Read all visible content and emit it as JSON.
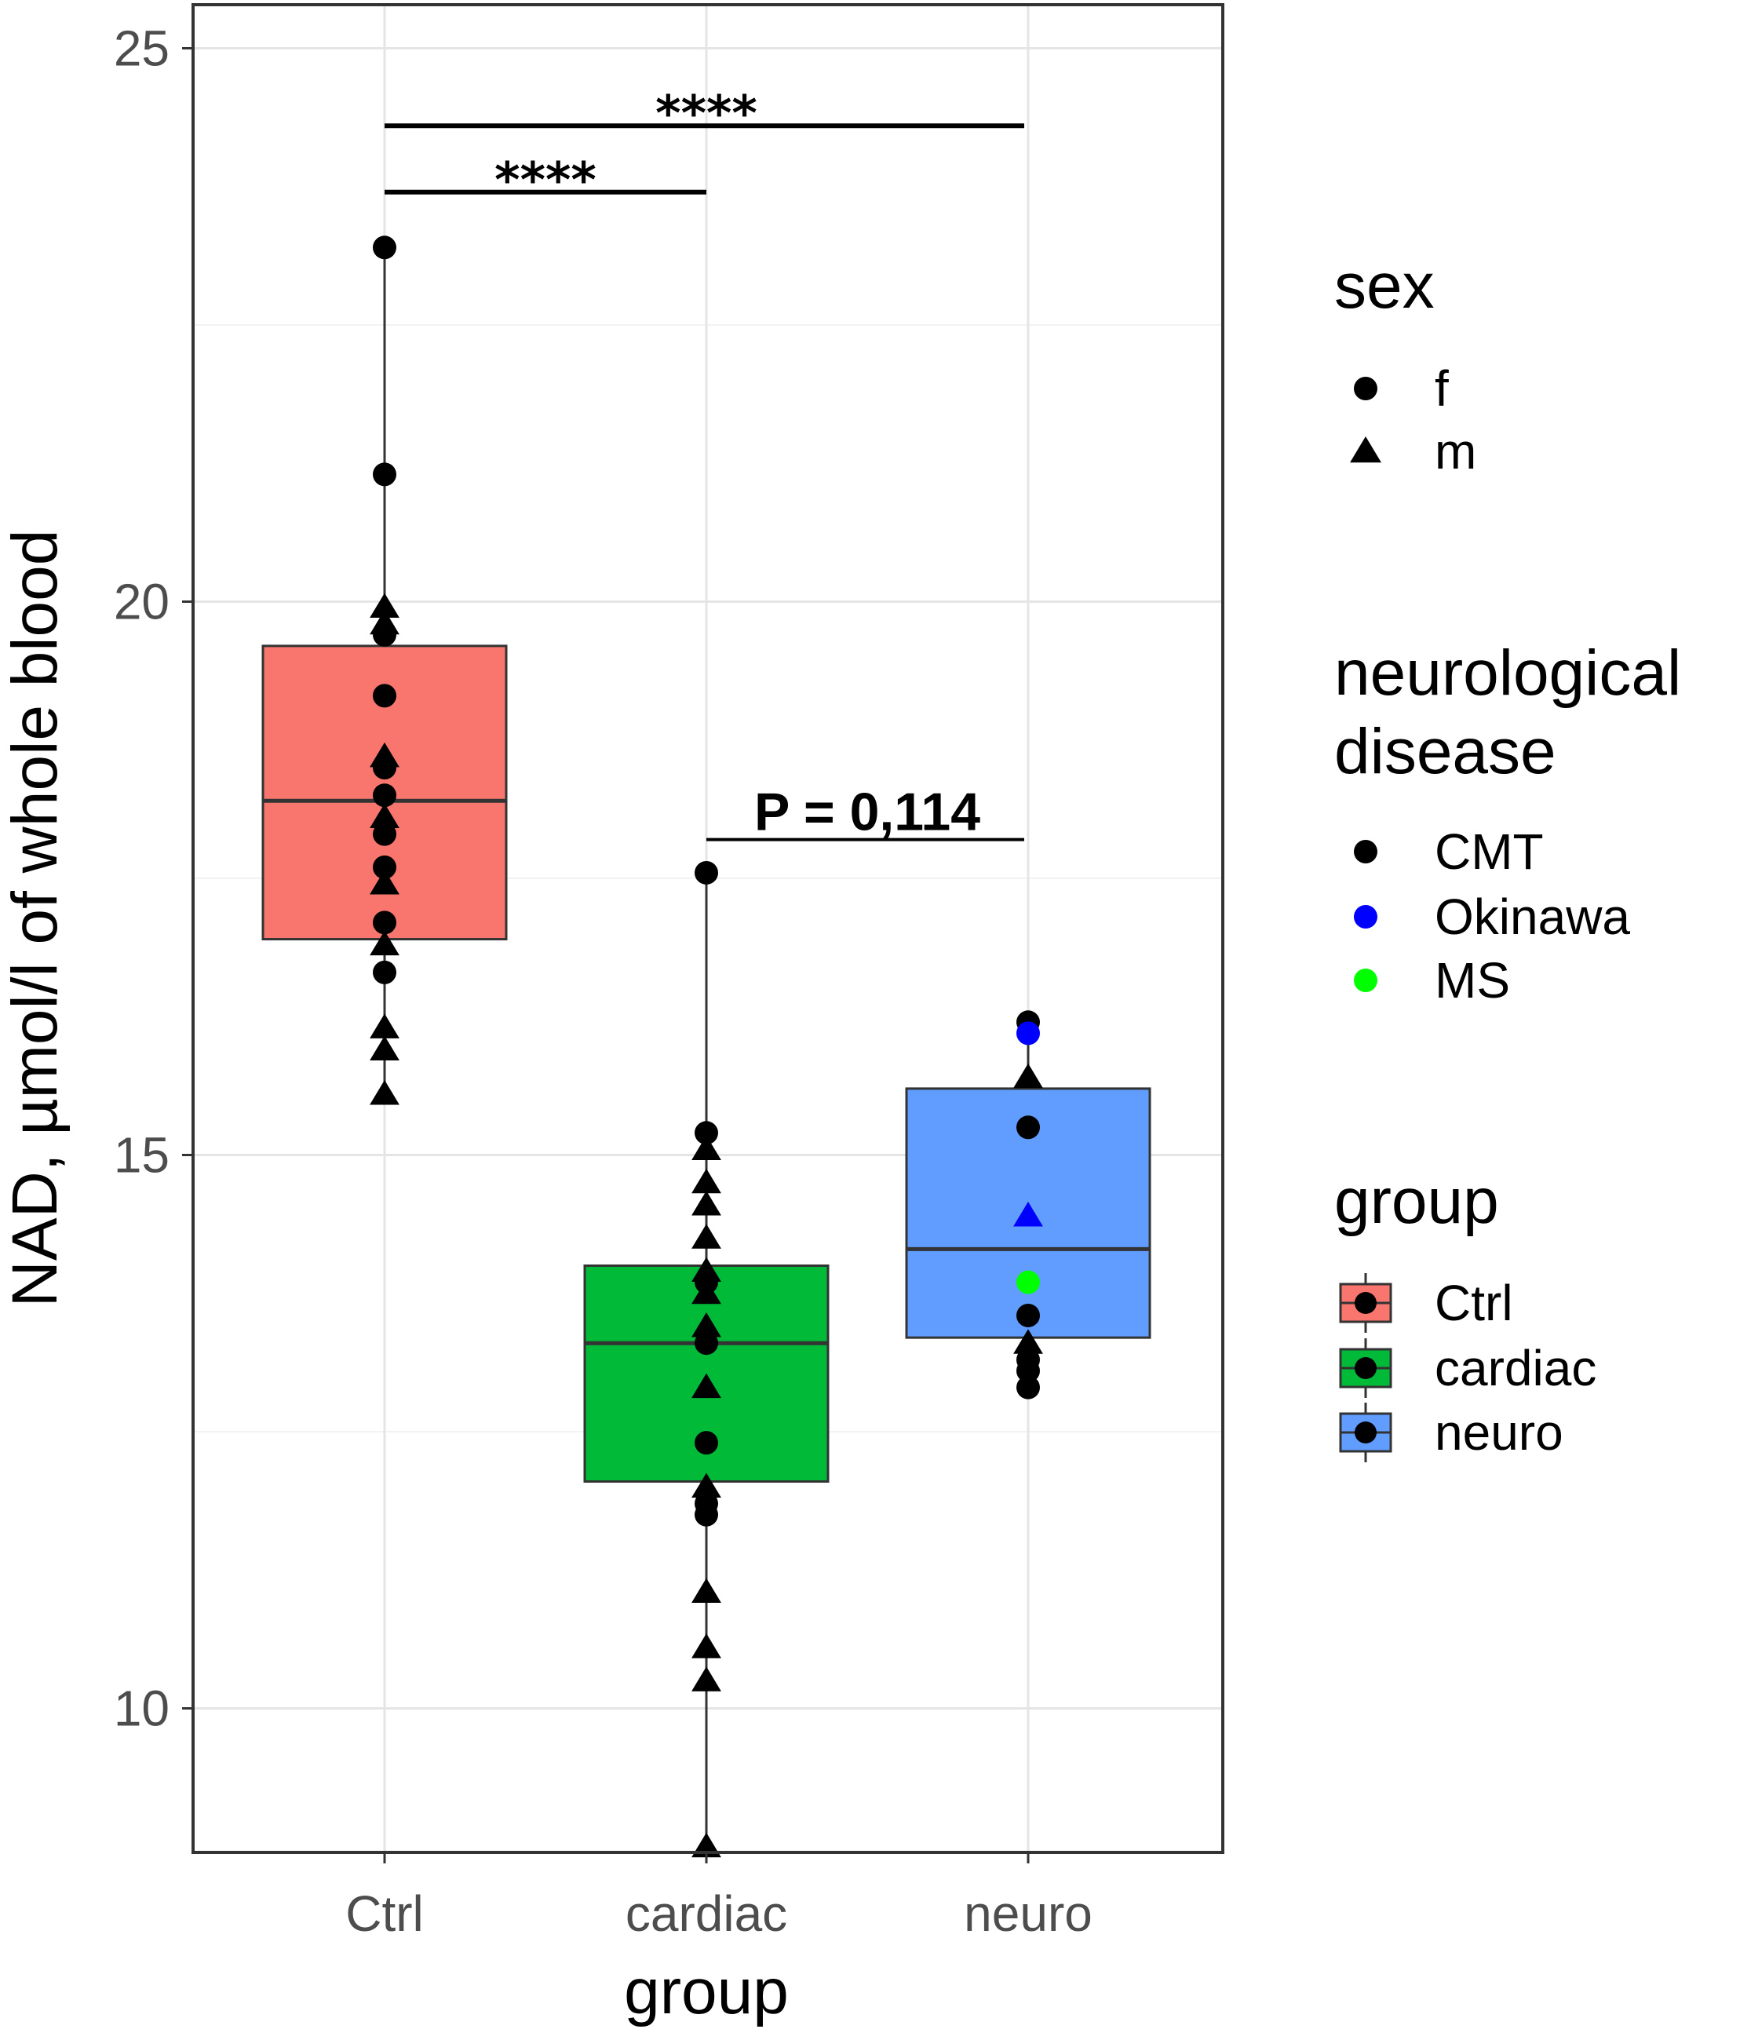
{
  "chart_data": {
    "type": "box",
    "xlabel": "group",
    "ylabel": "NAD, µmol/l of whole blood",
    "ylim": [
      8.7,
      25.4
    ],
    "yticks": [
      10,
      15,
      20,
      25
    ],
    "ytick_labels": [
      "10",
      "15",
      "20",
      "25"
    ],
    "categories": [
      "Ctrl",
      "cardiac",
      "neuro"
    ],
    "grid": true,
    "colors": {
      "Ctrl": "#f8766d",
      "cardiac": "#00ba38",
      "neuro": "#619cff",
      "CMT": "#000000",
      "Okinawa": "#0000ff",
      "MS": "#00ff00"
    },
    "boxes": [
      {
        "group": "Ctrl",
        "q1": 16.95,
        "median": 18.2,
        "q3": 19.6,
        "whisker_low": 15.5,
        "whisker_high": 23.2
      },
      {
        "group": "cardiac",
        "q1": 12.05,
        "median": 13.3,
        "q3": 14.0,
        "whisker_low": 8.75,
        "whisker_high": 17.55
      },
      {
        "group": "neuro",
        "q1": 13.35,
        "median": 14.15,
        "q3": 15.6,
        "whisker_low": 12.9,
        "whisker_high": 16.2
      }
    ],
    "points": [
      {
        "group": "Ctrl",
        "y": 23.2,
        "sex": "f",
        "disease": "CMT"
      },
      {
        "group": "Ctrl",
        "y": 21.15,
        "sex": "f",
        "disease": "CMT"
      },
      {
        "group": "Ctrl",
        "y": 19.95,
        "sex": "m",
        "disease": "CMT"
      },
      {
        "group": "Ctrl",
        "y": 19.8,
        "sex": "m",
        "disease": "CMT"
      },
      {
        "group": "Ctrl",
        "y": 19.7,
        "sex": "f",
        "disease": "CMT"
      },
      {
        "group": "Ctrl",
        "y": 19.15,
        "sex": "f",
        "disease": "CMT"
      },
      {
        "group": "Ctrl",
        "y": 18.6,
        "sex": "m",
        "disease": "CMT"
      },
      {
        "group": "Ctrl",
        "y": 18.5,
        "sex": "f",
        "disease": "CMT"
      },
      {
        "group": "Ctrl",
        "y": 18.25,
        "sex": "f",
        "disease": "CMT"
      },
      {
        "group": "Ctrl",
        "y": 18.05,
        "sex": "m",
        "disease": "CMT"
      },
      {
        "group": "Ctrl",
        "y": 17.9,
        "sex": "f",
        "disease": "CMT"
      },
      {
        "group": "Ctrl",
        "y": 17.6,
        "sex": "f",
        "disease": "CMT"
      },
      {
        "group": "Ctrl",
        "y": 17.45,
        "sex": "m",
        "disease": "CMT"
      },
      {
        "group": "Ctrl",
        "y": 17.1,
        "sex": "f",
        "disease": "CMT"
      },
      {
        "group": "Ctrl",
        "y": 16.9,
        "sex": "m",
        "disease": "CMT"
      },
      {
        "group": "Ctrl",
        "y": 16.65,
        "sex": "f",
        "disease": "CMT"
      },
      {
        "group": "Ctrl",
        "y": 16.15,
        "sex": "m",
        "disease": "CMT"
      },
      {
        "group": "Ctrl",
        "y": 15.95,
        "sex": "m",
        "disease": "CMT"
      },
      {
        "group": "Ctrl",
        "y": 15.55,
        "sex": "m",
        "disease": "CMT"
      },
      {
        "group": "cardiac",
        "y": 17.55,
        "sex": "f",
        "disease": "CMT"
      },
      {
        "group": "cardiac",
        "y": 15.2,
        "sex": "f",
        "disease": "CMT"
      },
      {
        "group": "cardiac",
        "y": 15.05,
        "sex": "m",
        "disease": "CMT"
      },
      {
        "group": "cardiac",
        "y": 14.75,
        "sex": "m",
        "disease": "CMT"
      },
      {
        "group": "cardiac",
        "y": 14.55,
        "sex": "m",
        "disease": "CMT"
      },
      {
        "group": "cardiac",
        "y": 14.25,
        "sex": "m",
        "disease": "CMT"
      },
      {
        "group": "cardiac",
        "y": 13.95,
        "sex": "m",
        "disease": "CMT"
      },
      {
        "group": "cardiac",
        "y": 13.85,
        "sex": "f",
        "disease": "CMT"
      },
      {
        "group": "cardiac",
        "y": 13.75,
        "sex": "m",
        "disease": "CMT"
      },
      {
        "group": "cardiac",
        "y": 13.45,
        "sex": "m",
        "disease": "CMT"
      },
      {
        "group": "cardiac",
        "y": 13.3,
        "sex": "f",
        "disease": "CMT"
      },
      {
        "group": "cardiac",
        "y": 12.9,
        "sex": "m",
        "disease": "CMT"
      },
      {
        "group": "cardiac",
        "y": 12.4,
        "sex": "f",
        "disease": "CMT"
      },
      {
        "group": "cardiac",
        "y": 12.0,
        "sex": "m",
        "disease": "CMT"
      },
      {
        "group": "cardiac",
        "y": 11.85,
        "sex": "f",
        "disease": "CMT"
      },
      {
        "group": "cardiac",
        "y": 11.75,
        "sex": "f",
        "disease": "CMT"
      },
      {
        "group": "cardiac",
        "y": 11.05,
        "sex": "m",
        "disease": "CMT"
      },
      {
        "group": "cardiac",
        "y": 10.55,
        "sex": "m",
        "disease": "CMT"
      },
      {
        "group": "cardiac",
        "y": 10.25,
        "sex": "m",
        "disease": "CMT"
      },
      {
        "group": "cardiac",
        "y": 8.75,
        "sex": "m",
        "disease": "CMT"
      },
      {
        "group": "neuro",
        "y": 16.2,
        "sex": "f",
        "disease": "CMT"
      },
      {
        "group": "neuro",
        "y": 16.1,
        "sex": "f",
        "disease": "Okinawa"
      },
      {
        "group": "neuro",
        "y": 15.7,
        "sex": "m",
        "disease": "CMT"
      },
      {
        "group": "neuro",
        "y": 15.25,
        "sex": "f",
        "disease": "CMT"
      },
      {
        "group": "neuro",
        "y": 14.45,
        "sex": "m",
        "disease": "Okinawa"
      },
      {
        "group": "neuro",
        "y": 13.85,
        "sex": "f",
        "disease": "MS"
      },
      {
        "group": "neuro",
        "y": 13.55,
        "sex": "f",
        "disease": "CMT"
      },
      {
        "group": "neuro",
        "y": 13.3,
        "sex": "m",
        "disease": "CMT"
      },
      {
        "group": "neuro",
        "y": 13.15,
        "sex": "f",
        "disease": "CMT"
      },
      {
        "group": "neuro",
        "y": 13.05,
        "sex": "f",
        "disease": "CMT"
      },
      {
        "group": "neuro",
        "y": 12.9,
        "sex": "f",
        "disease": "CMT"
      }
    ],
    "annotations": [
      {
        "from": "Ctrl",
        "to": "neuro",
        "label": "****",
        "y": 24.3
      },
      {
        "from": "Ctrl",
        "to": "cardiac",
        "label": "****",
        "y": 23.7
      },
      {
        "from": "cardiac",
        "to": "neuro",
        "label": "P = 0,114",
        "y": 17.85
      }
    ],
    "legends": [
      {
        "title": "sex",
        "entries": [
          {
            "label": "f",
            "shape": "circle"
          },
          {
            "label": "m",
            "shape": "triangle"
          }
        ]
      },
      {
        "title_lines": [
          "neurological",
          "disease"
        ],
        "entries": [
          {
            "label": "CMT",
            "color": "#000000"
          },
          {
            "label": "Okinawa",
            "color": "#0000ff"
          },
          {
            "label": "MS",
            "color": "#00ff00"
          }
        ]
      },
      {
        "title": "group",
        "entries": [
          {
            "label": "Ctrl",
            "fill": "#f8766d"
          },
          {
            "label": "cardiac",
            "fill": "#00ba38"
          },
          {
            "label": "neuro",
            "fill": "#619cff"
          }
        ]
      }
    ]
  }
}
